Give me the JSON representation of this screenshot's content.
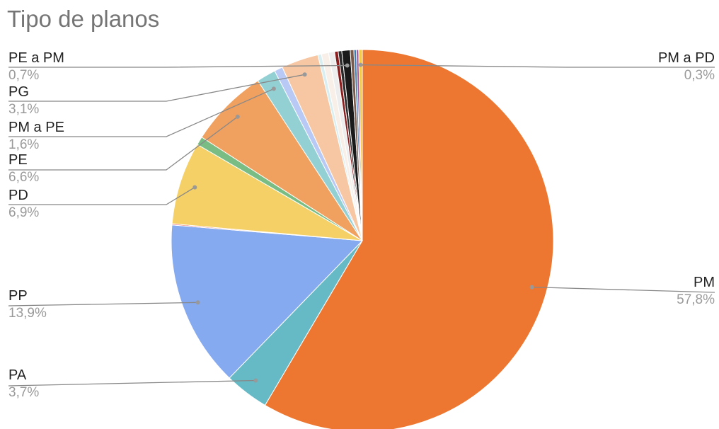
{
  "chart_data": {
    "type": "pie",
    "title": "Tipo de planos",
    "slices": [
      {
        "label": "PM",
        "value": 57.8,
        "display": "57,8%",
        "color": "#ED7731"
      },
      {
        "label": "PA",
        "value": 3.7,
        "display": "3,7%",
        "color": "#66BAC6"
      },
      {
        "label": "PP",
        "value": 13.9,
        "display": "13,9%",
        "color": "#86AAF0"
      },
      {
        "label": "",
        "value": 0.1,
        "color": "#E86B6B"
      },
      {
        "label": "PD",
        "value": 6.9,
        "display": "6,9%",
        "color": "#F4D066"
      },
      {
        "label": "",
        "value": 0.7,
        "color": "#79BD84"
      },
      {
        "label": "PE",
        "value": 6.6,
        "display": "6,6%",
        "color": "#F0A05F"
      },
      {
        "label": "PM a PE",
        "value": 1.6,
        "display": "1,6%",
        "color": "#93D0D4"
      },
      {
        "label": "",
        "value": 0.7,
        "color": "#B7C9F4"
      },
      {
        "label": "PG",
        "value": 3.1,
        "display": "3,1%",
        "color": "#F6C7A2"
      },
      {
        "label": "",
        "value": 0.3,
        "color": "#D8EEF0"
      },
      {
        "label": "",
        "value": 0.6,
        "color": "#F8F0E8"
      },
      {
        "label": "",
        "value": 0.5,
        "color": "#EDEDED"
      },
      {
        "label": "",
        "value": 0.3,
        "color": "#8A1E1E"
      },
      {
        "label": "",
        "value": 0.3,
        "color": "#2B2B2B"
      },
      {
        "label": "PE a PM",
        "value": 0.7,
        "display": "0,7%",
        "color": "#1A1A1A"
      },
      {
        "label": "",
        "value": 0.3,
        "color": "#7A5A4A"
      },
      {
        "label": "",
        "value": 0.2,
        "color": "#3E7CB1"
      },
      {
        "label": "",
        "value": 0.2,
        "color": "#A05A9A"
      },
      {
        "label": "PM a PD",
        "value": 0.3,
        "display": "0,3%",
        "color": "#F2C94C"
      }
    ],
    "labels_side": {
      "PM": "right",
      "PM a PD": "right",
      "PE a PM": "left",
      "PG": "left",
      "PM a PE": "left",
      "PE": "left",
      "PD": "left",
      "PP": "left",
      "PA": "left"
    }
  }
}
